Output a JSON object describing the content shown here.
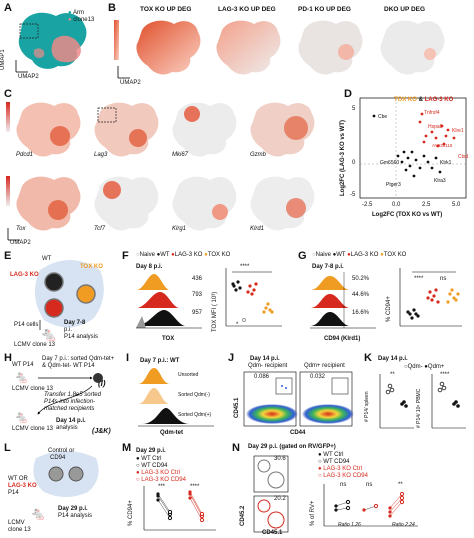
{
  "colors": {
    "arm": "#1aa3a3",
    "clone13": "#ec8a8a",
    "wt": "#111111",
    "lag3": "#d62a1e",
    "tox": "#f09b22",
    "naive": "#9a9a9a",
    "heat": "#e0502c"
  },
  "A": {
    "label": "A",
    "legend": [
      "Arm",
      "clone13"
    ],
    "xaxis": "UMAP2",
    "yaxis": "UMAP1"
  },
  "B": {
    "label": "B",
    "titles": [
      "TOX KO UP DEG",
      "LAG-3 KO UP DEG",
      "PD-1 KO UP DEG",
      "DKO UP DEG"
    ],
    "xaxis": "UMAP2"
  },
  "C": {
    "label": "C",
    "genes": [
      "Pdcd1",
      "Lag3",
      "Mki67",
      "Gzmb",
      "Tox",
      "Tcf7",
      "Klrg1",
      "Klrd1"
    ],
    "xaxis": "UMAP2",
    "yaxis": "UMAP1",
    "ticks": [
      "0",
      "1",
      "2",
      "3",
      "4"
    ]
  },
  "D": {
    "label": "D",
    "legend_tox": "TOX KO",
    "legend_amp": "&",
    "legend_lag": "LAG-3 KO",
    "xaxis": "Log2FC (TOX KO vs WT)",
    "yaxis": "Log2FC (LAG-3 KO vs WT)",
    "xticks": [
      "-2.5",
      "0.0",
      "2.5",
      "5.0"
    ],
    "yticks": [
      "5",
      "0",
      "-5"
    ],
    "genes_red": [
      "Tnfrsf4",
      "Tox",
      "Hspa8",
      "Klrc1",
      "Lyst2",
      "Klra6",
      "Klre1",
      "Ifitm2",
      "AY036118",
      "C1ra",
      "Ly6b",
      "Cst7",
      "Fam129a",
      "Gzmm",
      "Ctsd"
    ],
    "genes_black": [
      "Cbe",
      "Gm6560",
      "Snap",
      "Hexa",
      "Rsad2",
      "Pfspr1",
      "Klrk1",
      "Klrb1c",
      "Nkg7",
      "Klrc1b",
      "Id2",
      "Klra3",
      "Klri1",
      "Klra5",
      "Ptger3",
      "Klrd1"
    ]
  },
  "E": {
    "label": "E",
    "wt": "WT",
    "lag3": "LAG-3 KO",
    "tox": "TOX KO",
    "cells": "P14 cells",
    "lcmv": "LCMV clone 13",
    "day": "Day 7-8",
    "pi": "p.i.",
    "analysis": "P14 analysis"
  },
  "F": {
    "label": "F",
    "legend": [
      "Naive",
      "WT",
      "LAG-3 KO",
      "TOX KO"
    ],
    "day": "Day 8 p.i.",
    "mfi": [
      "436",
      "793",
      "957"
    ],
    "xaxis": "TOX",
    "yaxis": "TOX MFI ( 10³)",
    "stars": "****",
    "star1": "*"
  },
  "G": {
    "label": "G",
    "legend": [
      "Naive",
      "WT",
      "LAG-3 KO",
      "TOX KO"
    ],
    "day": "Day 7-8 p.i.",
    "pcts": [
      "50.2%",
      "44.6%",
      "16.6%"
    ],
    "xaxis": "CD94 (Klrd1)",
    "yaxis": "% CD94+",
    "stars": "****",
    "ns": "ns"
  },
  "H": {
    "label": "H",
    "wt": "WT P14",
    "day7": "Day 7 p.i.: sorted Qdm-tet+",
    "and": "& Qdm-tet- WT P14",
    "lcmv": "LCMV clone 13",
    "transfer": "Transfer 1.8e5 sorted",
    "transfer2": "P14s into infection-",
    "transfer3": "matched recipients",
    "day14": "Day 14 p.i.",
    "analysis": "analysis",
    "i": "(I)",
    "jk": "(J&K)"
  },
  "I": {
    "label": "I",
    "title": "Day 7 p.i.: WT",
    "rows": [
      "Unsorted",
      "Sorted Qdm(-)",
      "Sorted Qdm(+)"
    ],
    "xaxis": "Qdm-tet"
  },
  "J": {
    "label": "J",
    "day": "Day 14 p.i.",
    "h1": "Qdm- recipient",
    "h2": "Qdm+ recipient",
    "p1": "0.086",
    "p2": "0.032",
    "xaxis": "CD44",
    "yaxis": "CD45.1"
  },
  "K": {
    "label": "K",
    "day": "Day 14 p.i.",
    "legend": [
      "Qdm-",
      "Qdm+"
    ],
    "y1": "# P14/ spleen",
    "y2": "# P14/ 10⁶ PBMC",
    "stars1": "**",
    "stars2": "****"
  },
  "L": {
    "label": "L",
    "title1": "Control or",
    "title2": "CD94",
    "wt": "WT OR",
    "lag3": "LAG-3 KO",
    "p14": "P14",
    "day": "Day 29 p.i.",
    "analysis": "P14 analysis",
    "lcmv": "LCMV",
    "clone": "clone 13"
  },
  "M": {
    "label": "M",
    "day": "Day 29 p.i.",
    "legend": [
      "WT Ctrl",
      "WT CD94",
      "LAG-3 KO Ctrl",
      "LAG-3 KO CD94"
    ],
    "yaxis": "% CD94+",
    "stars1": "***",
    "stars2": "****"
  },
  "N": {
    "label": "N",
    "day": "Day 29 p.i. (gated on RV/GFP+)",
    "legend": [
      "WT Ctrl",
      "WT CD94",
      "LAG-3 KO Ctrl",
      "LAG-3 KO CD94"
    ],
    "xaxis": "CD45.1",
    "yaxis": "CD45.2",
    "q1": "30.6",
    "q2": "20.2",
    "yaxis2": "% of RV+",
    "ns1": "ns",
    "ns2": "ns",
    "stars": "**",
    "ratio1": "Ratio",
    "ratio1v": "1.26",
    "ratio2": "Ratio",
    "ratio2v": "2.24"
  }
}
